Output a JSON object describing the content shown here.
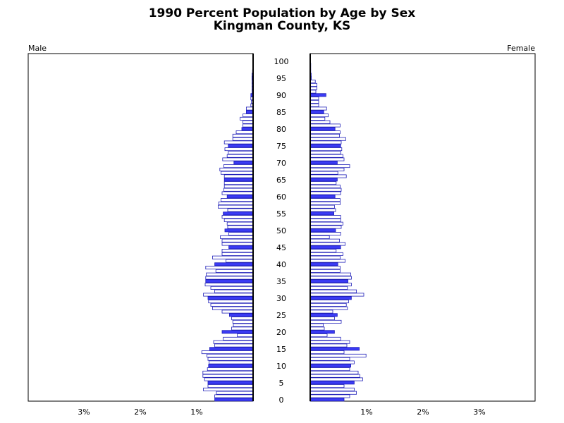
{
  "title": "1990 Percent Population by Age by Sex",
  "subtitle": "Kingman County, KS",
  "male_label": "Male",
  "female_label": "Female",
  "colors": {
    "bar_fill_major": "#3b3bf5",
    "bar_fill_minor": "#ffffff",
    "bar_stroke": "#1f1fb8",
    "axis": "#000000"
  },
  "chart_data": {
    "type": "bar",
    "orientation": "horizontal",
    "subtype": "population-pyramid",
    "title": "1990 Percent Population by Age by Sex",
    "subtitle": "Kingman County, KS",
    "y_ticks": [
      "0",
      "5",
      "10",
      "15",
      "20",
      "25",
      "30",
      "35",
      "40",
      "45",
      "50",
      "55",
      "60",
      "65",
      "70",
      "75",
      "80",
      "85",
      "90",
      "95",
      "100"
    ],
    "x_tick_labels": [
      "3%",
      "2%",
      "1%",
      "1%",
      "2%",
      "3%"
    ],
    "x_range_percent": [
      0,
      4
    ],
    "ages": [
      0,
      1,
      2,
      3,
      4,
      5,
      6,
      7,
      8,
      9,
      10,
      11,
      12,
      13,
      14,
      15,
      16,
      17,
      18,
      19,
      20,
      21,
      22,
      23,
      24,
      25,
      26,
      27,
      28,
      29,
      30,
      31,
      32,
      33,
      34,
      35,
      36,
      37,
      38,
      39,
      40,
      41,
      42,
      43,
      44,
      45,
      46,
      47,
      48,
      49,
      50,
      51,
      52,
      53,
      54,
      55,
      56,
      57,
      58,
      59,
      60,
      61,
      62,
      63,
      64,
      65,
      66,
      67,
      68,
      69,
      70,
      71,
      72,
      73,
      74,
      75,
      76,
      77,
      78,
      79,
      80,
      81,
      82,
      83,
      84,
      85,
      86,
      87,
      88,
      89,
      90,
      91,
      92,
      93,
      94,
      95,
      96,
      97,
      98,
      99,
      100
    ],
    "series": [
      {
        "name": "Male",
        "values": [
          0.68,
          0.68,
          0.65,
          0.88,
          0.8,
          0.8,
          0.86,
          0.89,
          0.89,
          0.81,
          0.79,
          0.78,
          0.8,
          0.82,
          0.91,
          0.77,
          0.68,
          0.7,
          0.53,
          0.28,
          0.55,
          0.38,
          0.35,
          0.36,
          0.38,
          0.42,
          0.55,
          0.72,
          0.75,
          0.79,
          0.8,
          0.88,
          0.68,
          0.75,
          0.85,
          0.84,
          0.84,
          0.83,
          0.66,
          0.84,
          0.68,
          0.48,
          0.72,
          0.55,
          0.55,
          0.43,
          0.55,
          0.55,
          0.58,
          0.43,
          0.5,
          0.45,
          0.46,
          0.51,
          0.55,
          0.53,
          0.45,
          0.62,
          0.61,
          0.57,
          0.46,
          0.55,
          0.52,
          0.51,
          0.51,
          0.51,
          0.51,
          0.57,
          0.59,
          0.52,
          0.34,
          0.54,
          0.46,
          0.44,
          0.5,
          0.44,
          0.51,
          0.36,
          0.36,
          0.3,
          0.2,
          0.18,
          0.18,
          0.23,
          0.18,
          0.12,
          0.12,
          0.04,
          0.03,
          0.04,
          0.04,
          0.02,
          0.02,
          0.02,
          0.02,
          0.02,
          0.02,
          0.01,
          0.0,
          0.0,
          0.0
        ]
      },
      {
        "name": "Female",
        "values": [
          0.6,
          0.7,
          0.82,
          0.78,
          0.6,
          0.78,
          0.93,
          0.88,
          0.85,
          0.7,
          0.72,
          0.78,
          0.7,
          0.99,
          0.6,
          0.87,
          0.65,
          0.7,
          0.54,
          0.3,
          0.43,
          0.25,
          0.23,
          0.55,
          0.43,
          0.48,
          0.4,
          0.66,
          0.64,
          0.68,
          0.73,
          0.95,
          0.82,
          0.66,
          0.73,
          0.67,
          0.73,
          0.72,
          0.53,
          0.53,
          0.49,
          0.62,
          0.53,
          0.58,
          0.46,
          0.54,
          0.62,
          0.52,
          0.34,
          0.54,
          0.45,
          0.55,
          0.58,
          0.54,
          0.54,
          0.42,
          0.45,
          0.43,
          0.53,
          0.53,
          0.44,
          0.54,
          0.55,
          0.53,
          0.46,
          0.48,
          0.64,
          0.49,
          0.6,
          0.7,
          0.48,
          0.6,
          0.58,
          0.54,
          0.56,
          0.54,
          0.55,
          0.63,
          0.52,
          0.53,
          0.44,
          0.53,
          0.35,
          0.26,
          0.32,
          0.24,
          0.29,
          0.15,
          0.15,
          0.15,
          0.28,
          0.1,
          0.12,
          0.12,
          0.09,
          0.02,
          0.02,
          0.01,
          0.01,
          0.01,
          0.0
        ]
      }
    ]
  }
}
